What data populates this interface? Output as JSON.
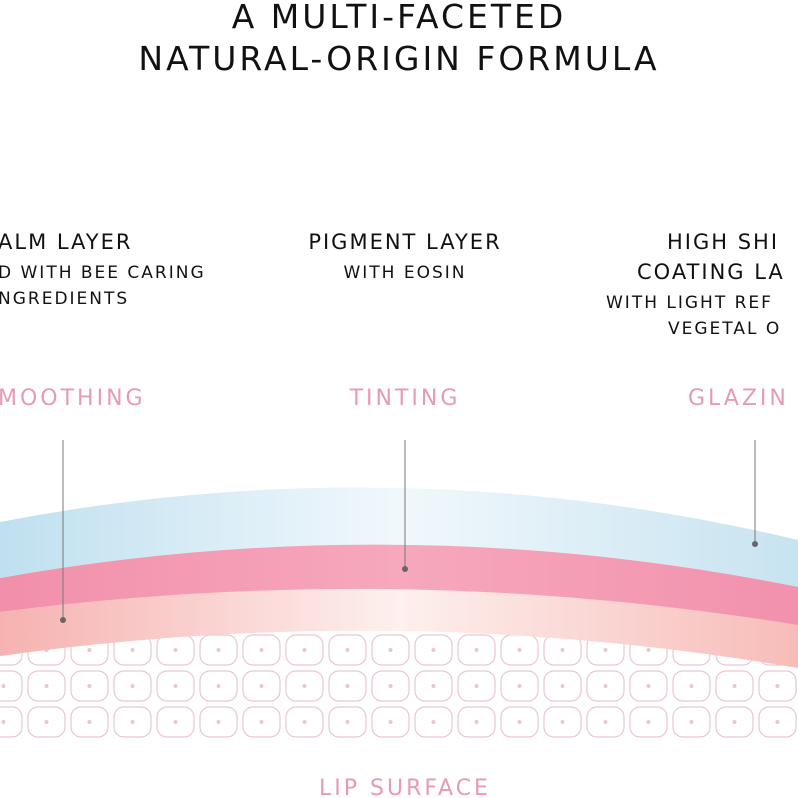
{
  "title": [
    "A MULTI-FACETED",
    "NATURAL-ORIGIN FORMULA"
  ],
  "layers": [
    {
      "heading": [
        "ALM LAYER"
      ],
      "details": [
        "D WITH BEE CARING",
        "NGREDIENTS"
      ],
      "effect": "MOOTHING"
    },
    {
      "heading": [
        "PIGMENT LAYER"
      ],
      "details": [
        "WITH EOSIN"
      ],
      "effect": "TINTING"
    },
    {
      "heading": [
        "HIGH SHI",
        "COATING LA"
      ],
      "details": [
        "WITH LIGHT REF",
        "VEGETAL O"
      ],
      "effect": "GLAZIN"
    }
  ],
  "base_label": "LIP SURFACE"
}
